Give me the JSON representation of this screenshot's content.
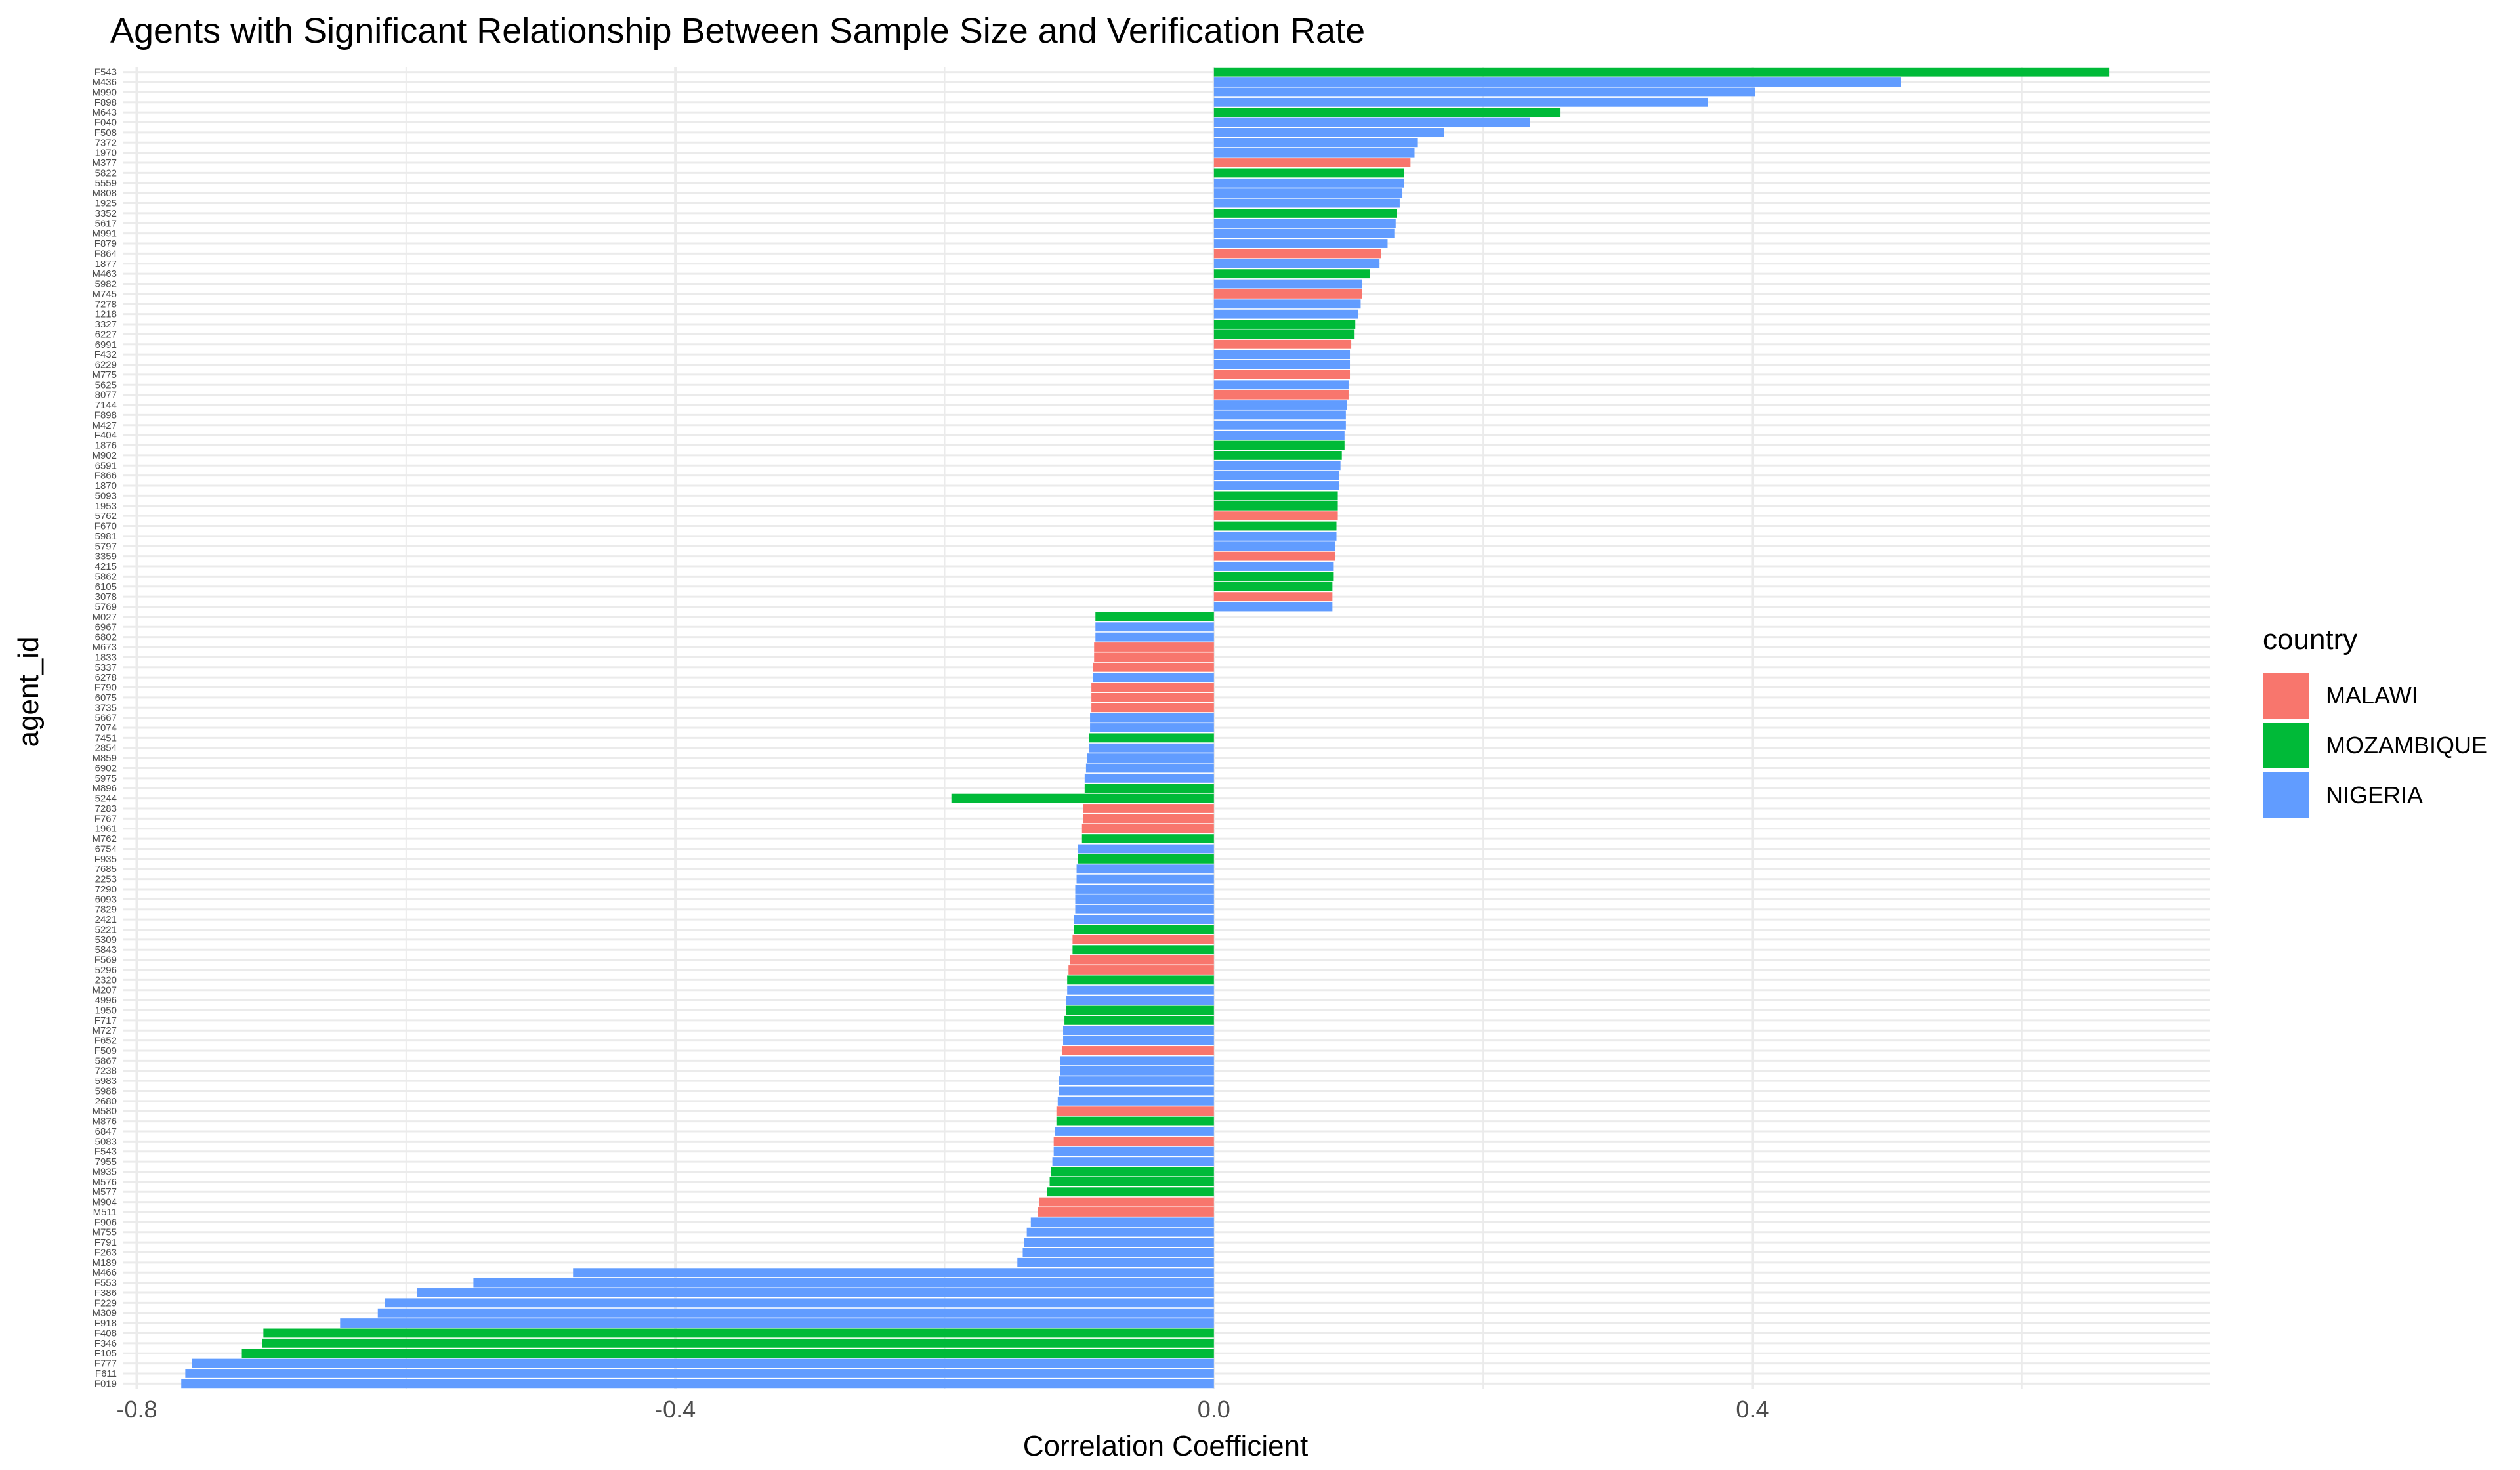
{
  "chart_data": {
    "type": "bar",
    "orientation": "horizontal",
    "title": "Agents with Significant Relationship Between Sample Size and Verification Rate",
    "xlabel": "Correlation Coefficient",
    "ylabel": "agent_id",
    "xlim": [
      -0.81,
      0.74
    ],
    "xticks": [
      -0.8,
      -0.4,
      0.0,
      0.4
    ],
    "xtick_labels": [
      "-0.8",
      "-0.4",
      "0.0",
      "0.4"
    ],
    "grid": true,
    "legend": {
      "title": "country",
      "position": "right",
      "entries": [
        {
          "name": "MALAWI",
          "color": "#F8766D"
        },
        {
          "name": "MOZAMBIQUE",
          "color": "#00BA38"
        },
        {
          "name": "NIGERIA",
          "color": "#619CFF"
        }
      ]
    },
    "bars": [
      {
        "id": "F543",
        "value": 0.665,
        "country": "MOZAMBIQUE"
      },
      {
        "id": "M436",
        "value": 0.51,
        "country": "NIGERIA"
      },
      {
        "id": "M990",
        "value": 0.402,
        "country": "NIGERIA"
      },
      {
        "id": "F898",
        "value": 0.367,
        "country": "NIGERIA"
      },
      {
        "id": "M643",
        "value": 0.257,
        "country": "MOZAMBIQUE"
      },
      {
        "id": "F040",
        "value": 0.235,
        "country": "NIGERIA"
      },
      {
        "id": "F508",
        "value": 0.171,
        "country": "NIGERIA"
      },
      {
        "id": "7372",
        "value": 0.151,
        "country": "NIGERIA"
      },
      {
        "id": "1970",
        "value": 0.149,
        "country": "NIGERIA"
      },
      {
        "id": "M377",
        "value": 0.146,
        "country": "MALAWI"
      },
      {
        "id": "5822",
        "value": 0.141,
        "country": "MOZAMBIQUE"
      },
      {
        "id": "5559",
        "value": 0.141,
        "country": "NIGERIA"
      },
      {
        "id": "M808",
        "value": 0.14,
        "country": "NIGERIA"
      },
      {
        "id": "1925",
        "value": 0.138,
        "country": "NIGERIA"
      },
      {
        "id": "3352",
        "value": 0.136,
        "country": "MOZAMBIQUE"
      },
      {
        "id": "5617",
        "value": 0.135,
        "country": "NIGERIA"
      },
      {
        "id": "M991",
        "value": 0.134,
        "country": "NIGERIA"
      },
      {
        "id": "F879",
        "value": 0.129,
        "country": "NIGERIA"
      },
      {
        "id": "F864",
        "value": 0.124,
        "country": "MALAWI"
      },
      {
        "id": "1877",
        "value": 0.123,
        "country": "NIGERIA"
      },
      {
        "id": "M463",
        "value": 0.116,
        "country": "MOZAMBIQUE"
      },
      {
        "id": "5982",
        "value": 0.11,
        "country": "NIGERIA"
      },
      {
        "id": "M745",
        "value": 0.11,
        "country": "MALAWI"
      },
      {
        "id": "7278",
        "value": 0.109,
        "country": "NIGERIA"
      },
      {
        "id": "1218",
        "value": 0.107,
        "country": "NIGERIA"
      },
      {
        "id": "3327",
        "value": 0.105,
        "country": "MOZAMBIQUE"
      },
      {
        "id": "6227",
        "value": 0.104,
        "country": "MOZAMBIQUE"
      },
      {
        "id": "6991",
        "value": 0.102,
        "country": "MALAWI"
      },
      {
        "id": "F432",
        "value": 0.101,
        "country": "NIGERIA"
      },
      {
        "id": "6229",
        "value": 0.101,
        "country": "NIGERIA"
      },
      {
        "id": "M775",
        "value": 0.101,
        "country": "MALAWI"
      },
      {
        "id": "5625",
        "value": 0.1,
        "country": "NIGERIA"
      },
      {
        "id": "8077",
        "value": 0.1,
        "country": "MALAWI"
      },
      {
        "id": "7144",
        "value": 0.099,
        "country": "NIGERIA"
      },
      {
        "id": "F898",
        "value": 0.098,
        "country": "NIGERIA"
      },
      {
        "id": "M427",
        "value": 0.098,
        "country": "NIGERIA"
      },
      {
        "id": "F404",
        "value": 0.097,
        "country": "NIGERIA"
      },
      {
        "id": "1876",
        "value": 0.097,
        "country": "MOZAMBIQUE"
      },
      {
        "id": "M902",
        "value": 0.095,
        "country": "MOZAMBIQUE"
      },
      {
        "id": "6591",
        "value": 0.094,
        "country": "NIGERIA"
      },
      {
        "id": "F866",
        "value": 0.093,
        "country": "NIGERIA"
      },
      {
        "id": "1870",
        "value": 0.093,
        "country": "NIGERIA"
      },
      {
        "id": "5093",
        "value": 0.092,
        "country": "MOZAMBIQUE"
      },
      {
        "id": "1953",
        "value": 0.092,
        "country": "MOZAMBIQUE"
      },
      {
        "id": "5762",
        "value": 0.092,
        "country": "MALAWI"
      },
      {
        "id": "F670",
        "value": 0.091,
        "country": "MOZAMBIQUE"
      },
      {
        "id": "5981",
        "value": 0.091,
        "country": "NIGERIA"
      },
      {
        "id": "5797",
        "value": 0.09,
        "country": "NIGERIA"
      },
      {
        "id": "3359",
        "value": 0.09,
        "country": "MALAWI"
      },
      {
        "id": "4215",
        "value": 0.089,
        "country": "NIGERIA"
      },
      {
        "id": "5862",
        "value": 0.089,
        "country": "MOZAMBIQUE"
      },
      {
        "id": "6105",
        "value": 0.088,
        "country": "MOZAMBIQUE"
      },
      {
        "id": "3078",
        "value": 0.088,
        "country": "MALAWI"
      },
      {
        "id": "5769",
        "value": 0.088,
        "country": "NIGERIA"
      },
      {
        "id": "M027",
        "value": -0.088,
        "country": "MOZAMBIQUE"
      },
      {
        "id": "6967",
        "value": -0.088,
        "country": "NIGERIA"
      },
      {
        "id": "6802",
        "value": -0.088,
        "country": "NIGERIA"
      },
      {
        "id": "M673",
        "value": -0.089,
        "country": "MALAWI"
      },
      {
        "id": "1833",
        "value": -0.089,
        "country": "MALAWI"
      },
      {
        "id": "5337",
        "value": -0.09,
        "country": "MALAWI"
      },
      {
        "id": "6278",
        "value": -0.09,
        "country": "NIGERIA"
      },
      {
        "id": "F790",
        "value": -0.091,
        "country": "MALAWI"
      },
      {
        "id": "6075",
        "value": -0.091,
        "country": "MALAWI"
      },
      {
        "id": "3735",
        "value": -0.091,
        "country": "MALAWI"
      },
      {
        "id": "5667",
        "value": -0.092,
        "country": "NIGERIA"
      },
      {
        "id": "7074",
        "value": -0.092,
        "country": "NIGERIA"
      },
      {
        "id": "7451",
        "value": -0.093,
        "country": "MOZAMBIQUE"
      },
      {
        "id": "2854",
        "value": -0.093,
        "country": "NIGERIA"
      },
      {
        "id": "M859",
        "value": -0.094,
        "country": "NIGERIA"
      },
      {
        "id": "6902",
        "value": -0.095,
        "country": "NIGERIA"
      },
      {
        "id": "5975",
        "value": -0.096,
        "country": "NIGERIA"
      },
      {
        "id": "M896",
        "value": -0.096,
        "country": "MOZAMBIQUE"
      },
      {
        "id": "5244",
        "value": -0.195,
        "country": "MOZAMBIQUE"
      },
      {
        "id": "7283",
        "value": -0.097,
        "country": "MALAWI"
      },
      {
        "id": "F767",
        "value": -0.097,
        "country": "MALAWI"
      },
      {
        "id": "1961",
        "value": -0.098,
        "country": "MALAWI"
      },
      {
        "id": "M762",
        "value": -0.098,
        "country": "MOZAMBIQUE"
      },
      {
        "id": "6754",
        "value": -0.101,
        "country": "NIGERIA"
      },
      {
        "id": "F935",
        "value": -0.101,
        "country": "MOZAMBIQUE"
      },
      {
        "id": "7685",
        "value": -0.102,
        "country": "NIGERIA"
      },
      {
        "id": "2253",
        "value": -0.102,
        "country": "NIGERIA"
      },
      {
        "id": "7290",
        "value": -0.103,
        "country": "NIGERIA"
      },
      {
        "id": "6093",
        "value": -0.103,
        "country": "NIGERIA"
      },
      {
        "id": "7829",
        "value": -0.103,
        "country": "NIGERIA"
      },
      {
        "id": "2421",
        "value": -0.104,
        "country": "NIGERIA"
      },
      {
        "id": "5221",
        "value": -0.104,
        "country": "MOZAMBIQUE"
      },
      {
        "id": "5309",
        "value": -0.105,
        "country": "MALAWI"
      },
      {
        "id": "5843",
        "value": -0.105,
        "country": "MOZAMBIQUE"
      },
      {
        "id": "F569",
        "value": -0.107,
        "country": "MALAWI"
      },
      {
        "id": "5296",
        "value": -0.108,
        "country": "MALAWI"
      },
      {
        "id": "2320",
        "value": -0.109,
        "country": "MOZAMBIQUE"
      },
      {
        "id": "M207",
        "value": -0.109,
        "country": "NIGERIA"
      },
      {
        "id": "4996",
        "value": -0.11,
        "country": "NIGERIA"
      },
      {
        "id": "1950",
        "value": -0.11,
        "country": "MOZAMBIQUE"
      },
      {
        "id": "F717",
        "value": -0.111,
        "country": "MOZAMBIQUE"
      },
      {
        "id": "M727",
        "value": -0.112,
        "country": "NIGERIA"
      },
      {
        "id": "F652",
        "value": -0.112,
        "country": "NIGERIA"
      },
      {
        "id": "F509",
        "value": -0.113,
        "country": "MALAWI"
      },
      {
        "id": "5867",
        "value": -0.114,
        "country": "NIGERIA"
      },
      {
        "id": "7238",
        "value": -0.114,
        "country": "NIGERIA"
      },
      {
        "id": "5983",
        "value": -0.115,
        "country": "NIGERIA"
      },
      {
        "id": "5988",
        "value": -0.115,
        "country": "NIGERIA"
      },
      {
        "id": "2680",
        "value": -0.116,
        "country": "NIGERIA"
      },
      {
        "id": "M580",
        "value": -0.117,
        "country": "MALAWI"
      },
      {
        "id": "M876",
        "value": -0.117,
        "country": "MOZAMBIQUE"
      },
      {
        "id": "6847",
        "value": -0.118,
        "country": "NIGERIA"
      },
      {
        "id": "5083",
        "value": -0.119,
        "country": "MALAWI"
      },
      {
        "id": "F543",
        "value": -0.119,
        "country": "NIGERIA"
      },
      {
        "id": "7955",
        "value": -0.12,
        "country": "NIGERIA"
      },
      {
        "id": "M935",
        "value": -0.121,
        "country": "MOZAMBIQUE"
      },
      {
        "id": "M576",
        "value": -0.122,
        "country": "MOZAMBIQUE"
      },
      {
        "id": "M577",
        "value": -0.124,
        "country": "MOZAMBIQUE"
      },
      {
        "id": "M904",
        "value": -0.13,
        "country": "MALAWI"
      },
      {
        "id": "M511",
        "value": -0.131,
        "country": "MALAWI"
      },
      {
        "id": "F906",
        "value": -0.136,
        "country": "NIGERIA"
      },
      {
        "id": "M755",
        "value": -0.139,
        "country": "NIGERIA"
      },
      {
        "id": "F791",
        "value": -0.141,
        "country": "NIGERIA"
      },
      {
        "id": "F263",
        "value": -0.142,
        "country": "NIGERIA"
      },
      {
        "id": "M189",
        "value": -0.146,
        "country": "NIGERIA"
      },
      {
        "id": "M466",
        "value": -0.476,
        "country": "NIGERIA"
      },
      {
        "id": "F553",
        "value": -0.55,
        "country": "NIGERIA"
      },
      {
        "id": "F386",
        "value": -0.592,
        "country": "NIGERIA"
      },
      {
        "id": "F229",
        "value": -0.616,
        "country": "NIGERIA"
      },
      {
        "id": "M309",
        "value": -0.621,
        "country": "NIGERIA"
      },
      {
        "id": "F918",
        "value": -0.649,
        "country": "NIGERIA"
      },
      {
        "id": "F408",
        "value": -0.706,
        "country": "MOZAMBIQUE"
      },
      {
        "id": "F346",
        "value": -0.707,
        "country": "MOZAMBIQUE"
      },
      {
        "id": "F105",
        "value": -0.722,
        "country": "MOZAMBIQUE"
      },
      {
        "id": "F777",
        "value": -0.759,
        "country": "NIGERIA"
      },
      {
        "id": "F611",
        "value": -0.764,
        "country": "NIGERIA"
      },
      {
        "id": "F019",
        "value": -0.767,
        "country": "NIGERIA"
      }
    ]
  }
}
